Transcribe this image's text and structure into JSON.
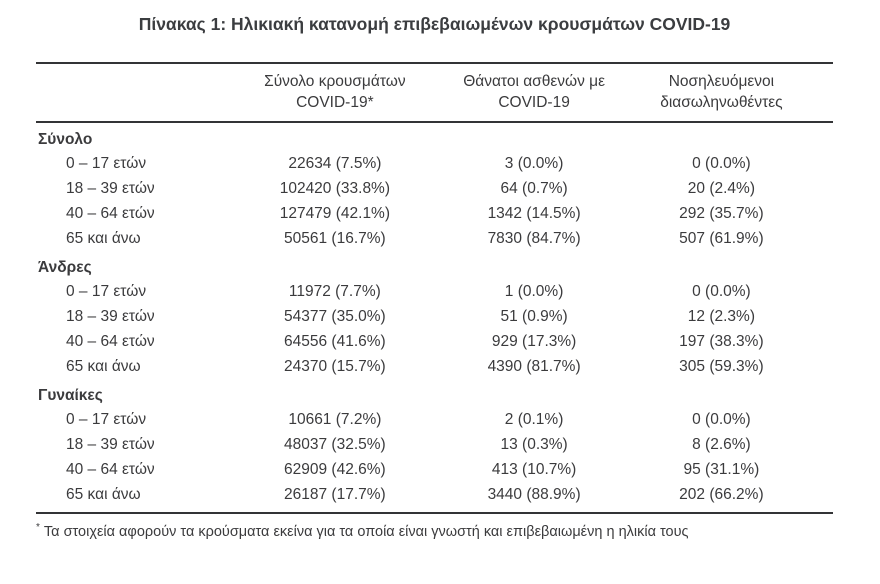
{
  "title": "Πίνακας 1: Ηλικιακή κατανομή επιβεβαιωμένων κρουσμάτων COVID-19",
  "colors": {
    "text": "#3b3b3d",
    "rule_lines": "#333436",
    "background": "#ffffff"
  },
  "table": {
    "columns": [
      {
        "line1": "Σύνολο κρουσμάτων",
        "line2": "COVID-19*"
      },
      {
        "line1": "Θάνατοι ασθενών με",
        "line2": "COVID-19"
      },
      {
        "line1": "Νοσηλευόμενοι",
        "line2": "διασωληνωθέντες"
      }
    ],
    "sections": [
      {
        "name": "Σύνολο",
        "rows": [
          {
            "label": "0 – 17 ετών",
            "cases": "22634 (7.5%)",
            "deaths": "3 (0.0%)",
            "intubated": "0 (0.0%)"
          },
          {
            "label": "18 – 39 ετών",
            "cases": "102420 (33.8%)",
            "deaths": "64 (0.7%)",
            "intubated": "20 (2.4%)"
          },
          {
            "label": "40 – 64 ετών",
            "cases": "127479 (42.1%)",
            "deaths": "1342 (14.5%)",
            "intubated": "292 (35.7%)"
          },
          {
            "label": "65 και άνω",
            "cases": "50561 (16.7%)",
            "deaths": "7830 (84.7%)",
            "intubated": "507 (61.9%)"
          }
        ]
      },
      {
        "name": "Άνδρες",
        "rows": [
          {
            "label": "0 – 17 ετών",
            "cases": "11972 (7.7%)",
            "deaths": "1 (0.0%)",
            "intubated": "0 (0.0%)"
          },
          {
            "label": "18 – 39 ετών",
            "cases": "54377 (35.0%)",
            "deaths": "51 (0.9%)",
            "intubated": "12 (2.3%)"
          },
          {
            "label": "40 – 64 ετών",
            "cases": "64556 (41.6%)",
            "deaths": "929 (17.3%)",
            "intubated": "197 (38.3%)"
          },
          {
            "label": "65 και άνω",
            "cases": "24370 (15.7%)",
            "deaths": "4390 (81.7%)",
            "intubated": "305 (59.3%)"
          }
        ]
      },
      {
        "name": "Γυναίκες",
        "rows": [
          {
            "label": "0 – 17 ετών",
            "cases": "10661 (7.2%)",
            "deaths": "2 (0.1%)",
            "intubated": "0 (0.0%)"
          },
          {
            "label": "18 – 39 ετών",
            "cases": "48037 (32.5%)",
            "deaths": "13 (0.3%)",
            "intubated": "8 (2.6%)"
          },
          {
            "label": "40 – 64 ετών",
            "cases": "62909 (42.6%)",
            "deaths": "413 (10.7%)",
            "intubated": "95 (31.1%)"
          },
          {
            "label": "65 και άνω",
            "cases": "26187 (17.7%)",
            "deaths": "3440 (88.9%)",
            "intubated": "202 (66.2%)"
          }
        ]
      }
    ]
  },
  "footnote": {
    "marker": "*",
    "text": "Τα στοιχεία αφορούν τα κρούσματα εκείνα για τα οποία είναι γνωστή και επιβεβαιωμένη η ηλικία τους"
  }
}
